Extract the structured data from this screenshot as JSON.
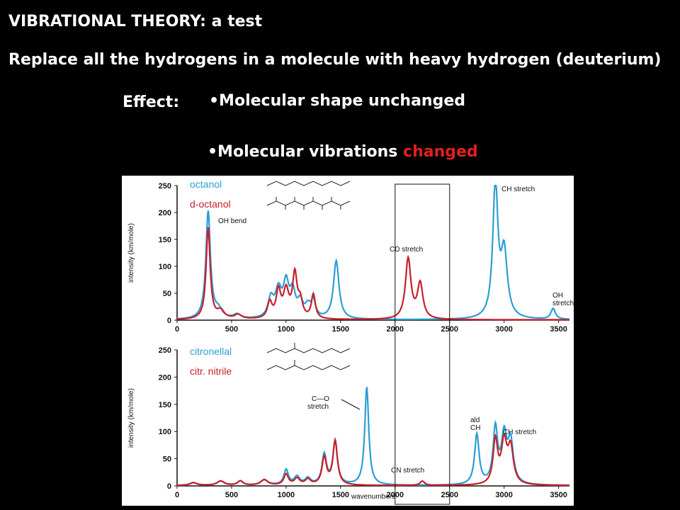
{
  "slide": {
    "title": "VIBRATIONAL THEORY: a test",
    "subtitle": "Replace all the hydrogens in a molecule with heavy hydrogen (deuterium)",
    "effect_label": "Effect:",
    "bullet1": "•Molecular shape unchanged",
    "bullet2_prefix": "•Molecular vibrations ",
    "bullet2_highlight": "changed"
  },
  "colors": {
    "blue": "#2a9fd6",
    "red": "#c8202a",
    "highlight": "#e02020"
  },
  "chart_data": [
    {
      "type": "line",
      "ylabel": "intensity (km/mole)",
      "xlim": [
        0,
        3600
      ],
      "ylim": [
        0,
        250
      ],
      "xticks": [
        "0",
        "500",
        "1000",
        "1500",
        "2000",
        "2500",
        "3000",
        "3500"
      ],
      "yticks": [
        "0",
        "50",
        "100",
        "150",
        "200",
        "250"
      ],
      "series": [
        {
          "name": "octanol",
          "color": "#2a9fd6",
          "peaks": [
            [
              285,
              200,
              25
            ],
            [
              380,
              15,
              40
            ],
            [
              550,
              8,
              40
            ],
            [
              860,
              35,
              30
            ],
            [
              930,
              50,
              35
            ],
            [
              1000,
              60,
              30
            ],
            [
              1060,
              45,
              30
            ],
            [
              1130,
              28,
              30
            ],
            [
              1200,
              20,
              30
            ],
            [
              1250,
              30,
              25
            ],
            [
              1460,
              108,
              30
            ],
            [
              2920,
              248,
              28
            ],
            [
              3000,
              120,
              35
            ],
            [
              3450,
              20,
              25
            ]
          ]
        },
        {
          "name": "d-octanol",
          "color": "#c8202a",
          "peaks": [
            [
              285,
              170,
              22
            ],
            [
              400,
              15,
              40
            ],
            [
              560,
              8,
              40
            ],
            [
              850,
              30,
              25
            ],
            [
              930,
              50,
              25
            ],
            [
              1000,
              50,
              30
            ],
            [
              1080,
              80,
              25
            ],
            [
              1130,
              30,
              25
            ],
            [
              1250,
              45,
              22
            ],
            [
              2120,
              112,
              30
            ],
            [
              2230,
              65,
              30
            ]
          ]
        }
      ],
      "annotations": [
        "OH bend",
        "CD stretch",
        "CH stretch",
        "OH",
        "stretch"
      ]
    },
    {
      "type": "line",
      "ylabel": "intensity (km/mole)",
      "xlabel": "wavenumbers",
      "xlim": [
        0,
        3600
      ],
      "ylim": [
        0,
        250
      ],
      "xticks": [
        "0",
        "500",
        "1000",
        "1500",
        "2000",
        "2500",
        "3000",
        "3500"
      ],
      "yticks": [
        "0",
        "50",
        "100",
        "150",
        "200",
        "250"
      ],
      "series": [
        {
          "name": "citronellal",
          "color": "#2a9fd6",
          "peaks": [
            [
              150,
              5,
              40
            ],
            [
              400,
              8,
              40
            ],
            [
              580,
              8,
              30
            ],
            [
              800,
              10,
              40
            ],
            [
              1000,
              28,
              25
            ],
            [
              1100,
              15,
              30
            ],
            [
              1200,
              12,
              30
            ],
            [
              1350,
              55,
              25
            ],
            [
              1450,
              80,
              25
            ],
            [
              1740,
              180,
              22
            ],
            [
              2750,
              92,
              25
            ],
            [
              2920,
              100,
              25
            ],
            [
              3000,
              85,
              30
            ],
            [
              3060,
              75,
              30
            ]
          ]
        },
        {
          "name": "citr. nitrile",
          "color": "#c8202a",
          "peaks": [
            [
              150,
              5,
              40
            ],
            [
              400,
              8,
              40
            ],
            [
              580,
              8,
              30
            ],
            [
              800,
              10,
              40
            ],
            [
              1000,
              20,
              25
            ],
            [
              1100,
              12,
              30
            ],
            [
              1200,
              10,
              30
            ],
            [
              1350,
              50,
              25
            ],
            [
              1450,
              80,
              25
            ],
            [
              2250,
              8,
              25
            ],
            [
              2920,
              80,
              25
            ],
            [
              3000,
              75,
              30
            ],
            [
              3060,
              65,
              30
            ]
          ]
        }
      ],
      "annotations": [
        "C—O",
        "stretch",
        "ald",
        "CH",
        "CH stretch",
        "CN stretch"
      ]
    }
  ]
}
